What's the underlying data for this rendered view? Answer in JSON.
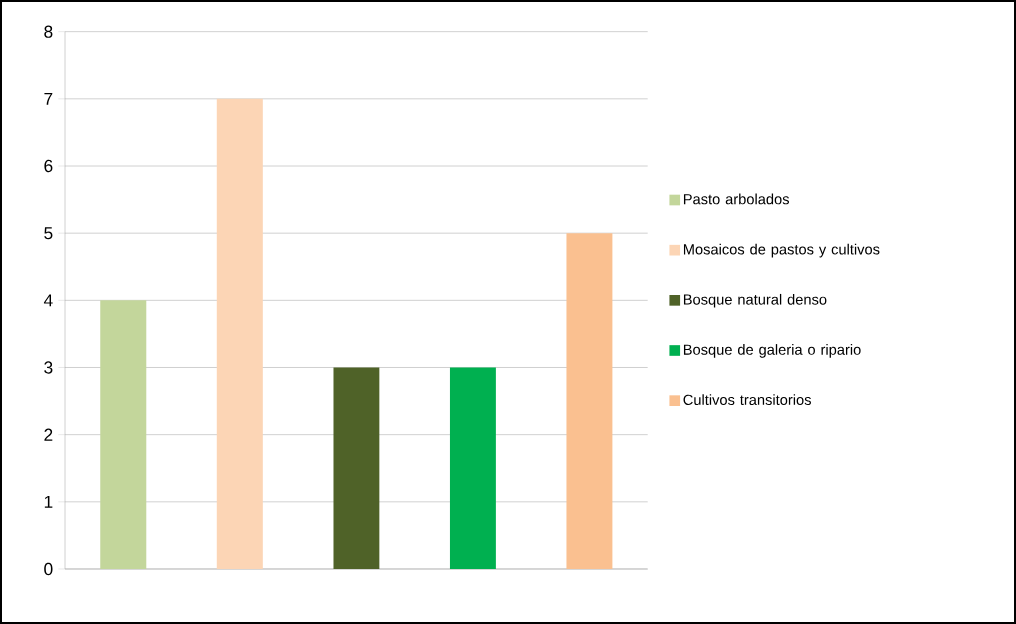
{
  "chart_data": {
    "type": "bar",
    "categories": [
      null
    ],
    "series": [
      {
        "name": "Pasto arbolados",
        "color": "#c3d69b",
        "values": [
          4
        ]
      },
      {
        "name": "Mosaicos de pastos y cultivos",
        "color": "#fcd5b5",
        "values": [
          7
        ]
      },
      {
        "name": "Bosque natural denso",
        "color": "#4f6228",
        "values": [
          3
        ]
      },
      {
        "name": "Bosque de galeria o ripario",
        "color": "#00b050",
        "values": [
          3
        ]
      },
      {
        "name": "Cultivos transitorios",
        "color": "#fac090",
        "values": [
          5
        ]
      }
    ],
    "ylim": [
      0,
      8
    ],
    "yticks": [
      0,
      1,
      2,
      3,
      4,
      5,
      6,
      7,
      8
    ],
    "grid": "y",
    "legend": "right"
  }
}
